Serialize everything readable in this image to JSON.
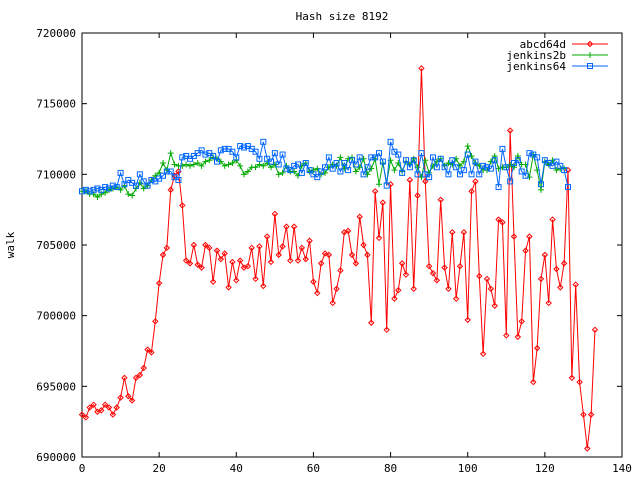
{
  "chart_data": {
    "type": "line",
    "title": "Hash size 8192",
    "xlabel": "",
    "ylabel": "walk",
    "xlim": [
      0,
      140
    ],
    "ylim": [
      690000,
      720000
    ],
    "x_ticks": [
      0,
      20,
      40,
      60,
      80,
      100,
      120,
      140
    ],
    "y_ticks": [
      690000,
      695000,
      700000,
      705000,
      710000,
      715000,
      720000
    ],
    "x_tick_labels": [
      "0",
      "20",
      "40",
      "60",
      "80",
      "100",
      "120",
      "140"
    ],
    "y_tick_labels": [
      "690000",
      "695000",
      "700000",
      "705000",
      "710000",
      "715000",
      "720000"
    ],
    "legend_position": "top-right",
    "grid": false,
    "series": [
      {
        "name": "abcd64d",
        "color": "#ff0000",
        "marker": "diamond",
        "x_start": 0,
        "values": [
          693000,
          692800,
          693500,
          693700,
          693200,
          693300,
          693700,
          693500,
          693000,
          693500,
          694200,
          695600,
          694300,
          694000,
          695600,
          695800,
          696300,
          697600,
          697400,
          699600,
          702300,
          704300,
          704800,
          708900,
          709900,
          710200,
          707800,
          703900,
          703700,
          705000,
          703600,
          703400,
          705000,
          704800,
          702400,
          704600,
          704000,
          704400,
          702000,
          703800,
          702500,
          703900,
          703400,
          703500,
          704800,
          702600,
          704900,
          702100,
          705600,
          703800,
          707200,
          704300,
          704900,
          706300,
          703900,
          706300,
          703900,
          704800,
          704000,
          705300,
          702400,
          701600,
          703700,
          704400,
          704300,
          700900,
          701900,
          703200,
          705900,
          706000,
          704300,
          703700,
          707000,
          705000,
          704300,
          699500,
          708800,
          705500,
          708000,
          699000,
          709300,
          701200,
          701800,
          703700,
          702900,
          709600,
          701900,
          708500,
          717500,
          709500,
          703500,
          703000,
          702500,
          708200,
          703400,
          701900,
          705900,
          701200,
          703500,
          705900,
          699700,
          708800,
          709500,
          702800,
          697300,
          702600,
          701900,
          700700,
          706800,
          706600,
          698600,
          713100,
          705600,
          698500,
          699600,
          704600,
          705600,
          695300,
          697700,
          702600,
          704300,
          700900,
          706800,
          703300,
          702000,
          703700,
          710300,
          695600,
          702200,
          695300,
          693000,
          690600,
          693000,
          699000
        ]
      },
      {
        "name": "jenkins2b",
        "color": "#00aa00",
        "marker": "plus",
        "x_start": 0,
        "values": [
          708800,
          708800,
          708600,
          708600,
          708400,
          708600,
          708700,
          708900,
          709000,
          709100,
          708900,
          709200,
          708600,
          708500,
          709000,
          709400,
          709000,
          709200,
          709600,
          709900,
          710100,
          710800,
          710300,
          711500,
          710700,
          710600,
          710600,
          710700,
          710600,
          710700,
          710800,
          710600,
          710900,
          711000,
          711200,
          711100,
          710900,
          710600,
          710700,
          710800,
          711000,
          710600,
          710000,
          710200,
          710500,
          710500,
          710700,
          710600,
          710800,
          710500,
          710700,
          710000,
          710100,
          710600,
          710200,
          710200,
          709900,
          710600,
          710800,
          710200,
          710300,
          710400,
          710000,
          710100,
          710500,
          710700,
          710600,
          711200,
          710400,
          711100,
          711200,
          710200,
          710500,
          711100,
          710000,
          710400,
          711100,
          709300,
          710800,
          709400,
          711000,
          710300,
          710800,
          710200,
          710900,
          710700,
          711100,
          710500,
          709800,
          711000,
          710100,
          710600,
          710900,
          711100,
          710600,
          710800,
          710700,
          711100,
          710600,
          710900,
          712000,
          711300,
          710800,
          710600,
          710300,
          710300,
          710900,
          711300,
          710400,
          710500,
          710500,
          710700,
          710500,
          711300,
          710700,
          710700,
          709800,
          711400,
          710300,
          708900,
          710900,
          710700,
          711000,
          710300,
          710400,
          710400
        ]
      },
      {
        "name": "jenkins64",
        "color": "#0066ff",
        "marker": "square",
        "x_start": 0,
        "values": [
          708800,
          708900,
          708800,
          708900,
          709000,
          708900,
          709100,
          709000,
          709200,
          709100,
          710100,
          709300,
          709600,
          709400,
          709200,
          710000,
          709500,
          709200,
          709600,
          709500,
          709700,
          709900,
          710200,
          710200,
          709800,
          709600,
          711200,
          711300,
          711100,
          711300,
          711500,
          711700,
          711400,
          711500,
          711300,
          710900,
          711700,
          711800,
          711800,
          711600,
          711200,
          712000,
          711900,
          712000,
          711800,
          711600,
          711100,
          712300,
          711100,
          710900,
          711500,
          710700,
          711400,
          710400,
          710300,
          710600,
          710700,
          710100,
          710800,
          710300,
          710000,
          709800,
          710200,
          710500,
          711200,
          710400,
          710800,
          710200,
          710800,
          710300,
          711000,
          710700,
          711200,
          710000,
          710500,
          711200,
          711200,
          711500,
          710900,
          709200,
          712300,
          711600,
          711400,
          710100,
          711000,
          710500,
          711000,
          710000,
          711500,
          710000,
          709800,
          711200,
          710500,
          711100,
          710500,
          710000,
          711000,
          710500,
          710000,
          710300,
          711400,
          710000,
          710900,
          710000,
          710600,
          710500,
          710400,
          711000,
          709100,
          711800,
          710500,
          709500,
          710800,
          711000,
          710200,
          709900,
          711500,
          711400,
          711200,
          709300,
          711000,
          710800,
          710600,
          710900,
          710600,
          710300,
          709100
        ]
      }
    ]
  }
}
